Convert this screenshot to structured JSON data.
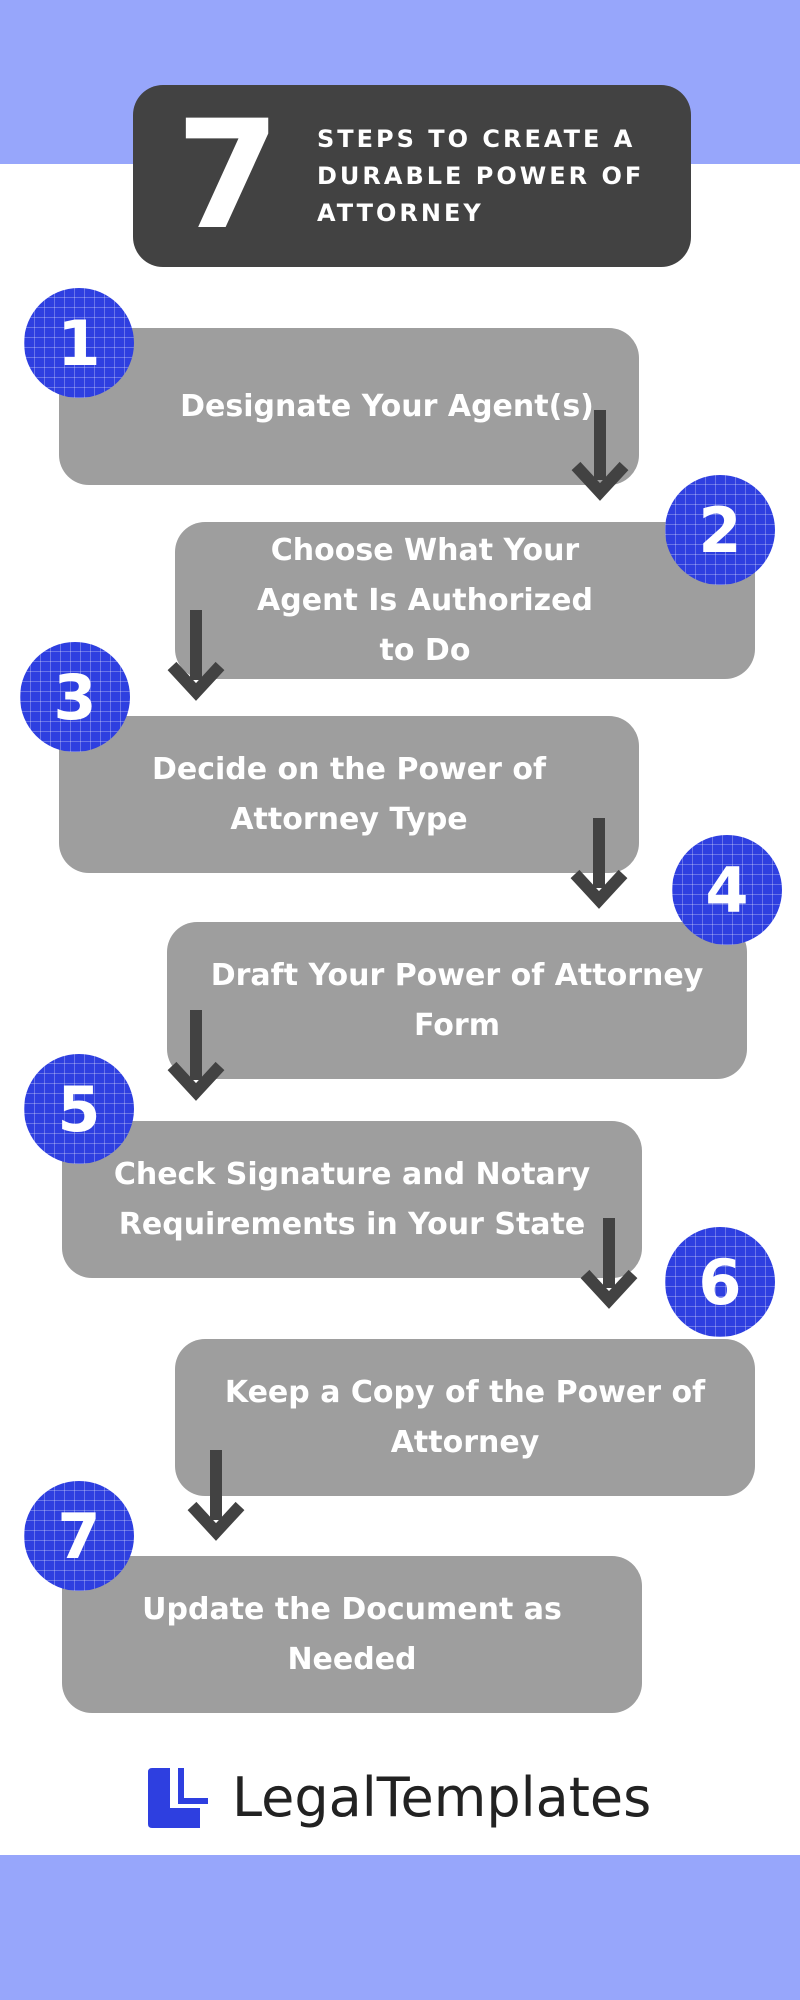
{
  "header": {
    "number": "7",
    "title": "STEPS TO CREATE A DURABLE POWER OF ATTORNEY"
  },
  "steps": [
    {
      "number": "1",
      "text": "Designate Your Agent(s)"
    },
    {
      "number": "2",
      "text": "Choose What Your Agent Is Authorized to Do"
    },
    {
      "number": "3",
      "text": "Decide on the Power of Attorney Type"
    },
    {
      "number": "4",
      "text": "Draft Your Power of Attorney Form"
    },
    {
      "number": "5",
      "text": "Check Signature and Notary Requirements in Your State"
    },
    {
      "number": "6",
      "text": "Keep a Copy of the Power of Attorney"
    },
    {
      "number": "7",
      "text": "Update the Document as Needed"
    }
  ],
  "footer": {
    "brand": "LegalTemplates"
  },
  "colors": {
    "band": "#97a6fb",
    "header_box": "#424242",
    "step_box": "#9e9e9e",
    "badge": "#2e3fe0",
    "arrow": "#424242",
    "logo": "#2e3fe0"
  }
}
